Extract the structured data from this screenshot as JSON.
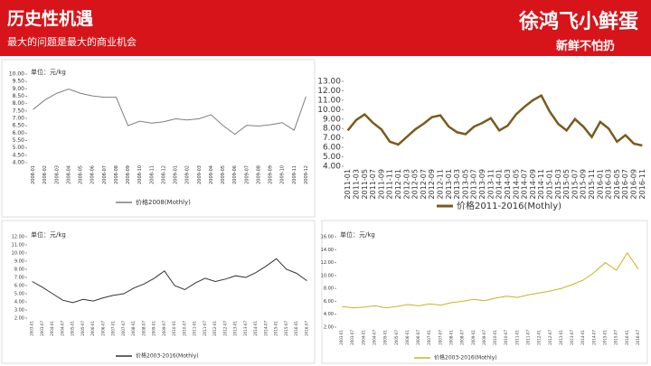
{
  "header": {
    "title": "历史性机遇",
    "subtitle": "最大的问题是最大的商业机会",
    "brand": "徐鸿飞小鲜蛋",
    "slogan": "新鲜不怕扔"
  },
  "chart_data": [
    {
      "type": "line",
      "y_label": "单位：元/kg",
      "categories": [
        "2008-01",
        "2008-02",
        "2008-03",
        "2008-04",
        "2008-05",
        "2008-06",
        "2008-07",
        "2008-08",
        "2008-09",
        "2008-10",
        "2008-11",
        "2008-12",
        "2009-01",
        "2009-02",
        "2009-03",
        "2009-04",
        "2009-05",
        "2009-06",
        "2009-07",
        "2009-08",
        "2009-09",
        "2009-10",
        "2009-11",
        "2009-12"
      ],
      "series": [
        {
          "name": "价格2008(Mothly)",
          "color": "#7f7f7f",
          "values": [
            7.6,
            8.25,
            8.7,
            8.99,
            8.7,
            8.52,
            8.43,
            8.43,
            6.51,
            6.81,
            6.68,
            6.77,
            6.97,
            6.89,
            6.98,
            7.25,
            6.52,
            5.92,
            6.53,
            6.48,
            6.57,
            6.71,
            6.2,
            8.48
          ]
        }
      ],
      "ylim": [
        4,
        10
      ],
      "yticks": [
        {
          "value": 4,
          "label": "4.00"
        },
        {
          "value": 4.5,
          "label": "4.50"
        },
        {
          "value": 5,
          "label": "5.00"
        },
        {
          "value": 5.5,
          "label": "5.50"
        },
        {
          "value": 6,
          "label": "6.00"
        },
        {
          "value": 6.5,
          "label": "6.50"
        },
        {
          "value": 7,
          "label": "7.00"
        },
        {
          "value": 7.5,
          "label": "7.50"
        },
        {
          "value": 8,
          "label": "8.00"
        },
        {
          "value": 8.5,
          "label": "8.50"
        },
        {
          "value": 9,
          "label": "9.00"
        },
        {
          "value": 9.5,
          "label": "9.50"
        },
        {
          "value": 10,
          "label": "10.00"
        }
      ]
    },
    {
      "type": "line",
      "categories": [
        "2011-01",
        "2011-03",
        "2011-05",
        "2011-07",
        "2011-09",
        "2011-11",
        "2012-01",
        "2012-03",
        "2012-05",
        "2012-07",
        "2012-09",
        "2012-11",
        "2013-01",
        "2013-03",
        "2013-05",
        "2013-07",
        "2013-09",
        "2013-11",
        "2014-01",
        "2014-03",
        "2014-05",
        "2014-07",
        "2014-09",
        "2014-11",
        "2015-01",
        "2015-03",
        "2015-05",
        "2015-07",
        "2015-09",
        "2015-11",
        "2016-01",
        "2016-03",
        "2016-05",
        "2016-07",
        "2016-09",
        "2016-11"
      ],
      "series": [
        {
          "name": "价格2011-2016(Mothly)",
          "color": "#7a5a1e",
          "values": [
            7.8,
            8.9,
            9.5,
            8.6,
            7.9,
            6.6,
            6.3,
            7.1,
            7.9,
            8.5,
            9.2,
            9.4,
            8.2,
            7.6,
            7.4,
            8.2,
            8.6,
            9.1,
            7.8,
            8.3,
            9.5,
            10.3,
            11.0,
            11.5,
            9.8,
            8.5,
            7.8,
            9.0,
            8.2,
            7.1,
            8.7,
            8.0,
            6.6,
            7.3,
            6.4,
            6.2
          ]
        }
      ],
      "ylim": [
        4,
        13
      ],
      "yticks": [
        {
          "value": 4,
          "label": "4.00"
        },
        {
          "value": 5,
          "label": "5.00"
        },
        {
          "value": 6,
          "label": "6.00"
        },
        {
          "value": 7,
          "label": "7.00"
        },
        {
          "value": 8,
          "label": "8.00"
        },
        {
          "value": 9,
          "label": "9.00"
        },
        {
          "value": 10,
          "label": "10.00"
        },
        {
          "value": 11,
          "label": "11.00"
        },
        {
          "value": 12,
          "label": "12.00"
        },
        {
          "value": 13,
          "label": "13.00"
        }
      ]
    },
    {
      "type": "line",
      "y_label": "单位：元/kg",
      "categories": [
        "2003-01",
        "2003-07",
        "2004-01",
        "2004-07",
        "2005-01",
        "2005-07",
        "2006-01",
        "2006-07",
        "2007-01",
        "2007-07",
        "2008-01",
        "2008-07",
        "2009-01",
        "2009-07",
        "2010-01",
        "2010-07",
        "2011-01",
        "2011-07",
        "2012-01",
        "2012-07",
        "2013-01",
        "2013-07",
        "2014-01",
        "2014-07",
        "2015-01",
        "2015-07",
        "2016-01",
        "2016-07"
      ],
      "series": [
        {
          "name": "价格2003-2016(Mothly)",
          "color": "#333333",
          "values": [
            6.5,
            5.8,
            5.0,
            4.2,
            3.9,
            4.3,
            4.1,
            4.5,
            4.8,
            5.0,
            5.7,
            6.2,
            6.9,
            7.8,
            6.0,
            5.5,
            6.3,
            6.9,
            6.5,
            6.8,
            7.2,
            7.0,
            7.6,
            8.4,
            9.3,
            8.0,
            7.5,
            6.6
          ]
        }
      ],
      "ylim": [
        2,
        12
      ],
      "yticks": [
        {
          "value": 2,
          "label": "2.00"
        },
        {
          "value": 3,
          "label": "3.00"
        },
        {
          "value": 4,
          "label": "4.00"
        },
        {
          "value": 5,
          "label": "5.00"
        },
        {
          "value": 6,
          "label": "6.00"
        },
        {
          "value": 7,
          "label": "7.00"
        },
        {
          "value": 8,
          "label": "8.00"
        },
        {
          "value": 9,
          "label": "9.00"
        },
        {
          "value": 10,
          "label": "10.00"
        },
        {
          "value": 11,
          "label": "11.00"
        },
        {
          "value": 12,
          "label": "12.00"
        }
      ]
    },
    {
      "type": "line",
      "y_label": "单位：元/kg",
      "categories": [
        "2003-01",
        "2003-07",
        "2004-01",
        "2004-07",
        "2005-01",
        "2005-07",
        "2006-01",
        "2006-07",
        "2007-01",
        "2007-07",
        "2008-01",
        "2008-07",
        "2009-01",
        "2009-07",
        "2010-01",
        "2010-07",
        "2011-01",
        "2011-07",
        "2012-01",
        "2012-07",
        "2013-01",
        "2013-07",
        "2014-01",
        "2014-07",
        "2015-01",
        "2015-07",
        "2016-01",
        "2016-07"
      ],
      "series": [
        {
          "name": "价格2003-2016(Mothly)",
          "color": "#c9b227",
          "values": [
            5.2,
            5.0,
            5.1,
            5.3,
            5.0,
            5.2,
            5.5,
            5.3,
            5.6,
            5.4,
            5.8,
            6.0,
            6.3,
            6.1,
            6.5,
            6.8,
            6.6,
            7.0,
            7.3,
            7.6,
            8.0,
            8.6,
            9.3,
            10.5,
            12.0,
            10.8,
            13.5,
            11.0
          ]
        }
      ],
      "ylim": [
        2,
        16
      ],
      "yticks": [
        {
          "value": 2,
          "label": "2.00"
        },
        {
          "value": 4,
          "label": "4.00"
        },
        {
          "value": 6,
          "label": "6.00"
        },
        {
          "value": 8,
          "label": "8.00"
        },
        {
          "value": 10,
          "label": "10.00"
        },
        {
          "value": 12,
          "label": "12.00"
        },
        {
          "value": 14,
          "label": "14.00"
        },
        {
          "value": 16,
          "label": "16.00"
        }
      ]
    }
  ]
}
